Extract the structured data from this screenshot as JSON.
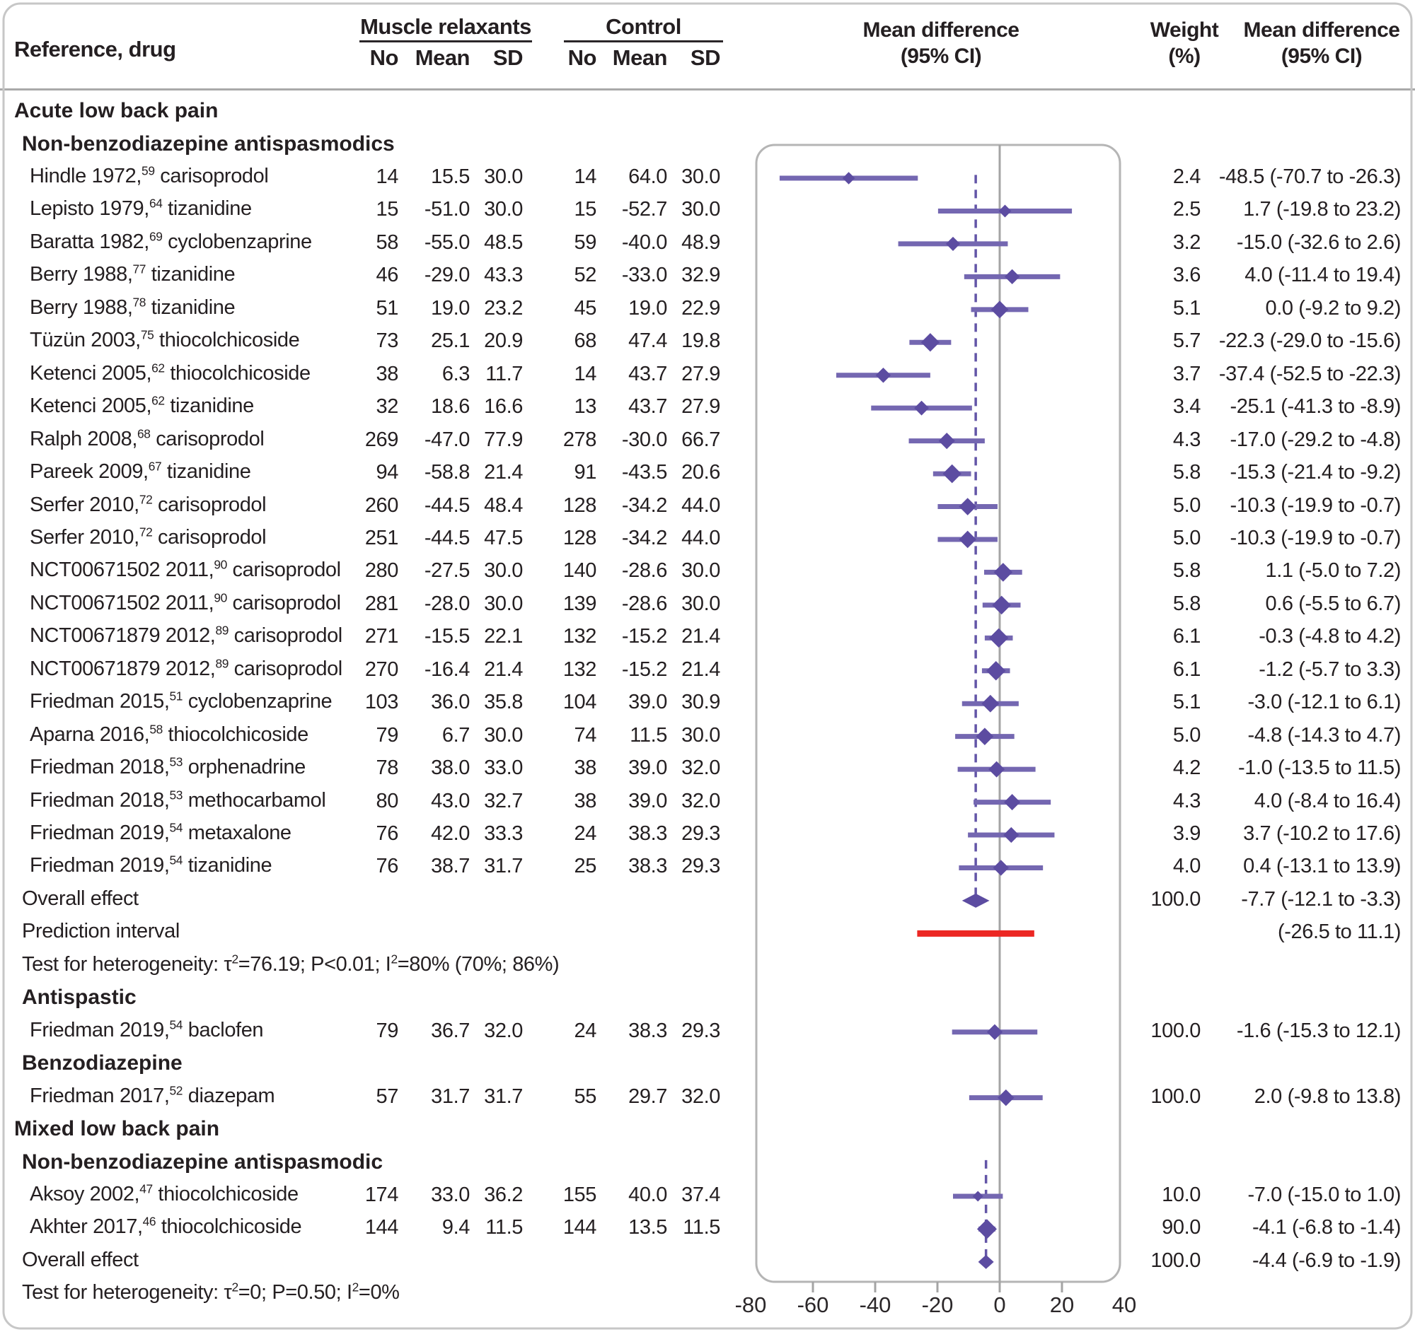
{
  "header": {
    "ref_col": "Reference, drug",
    "group1": "Muscle relaxants",
    "group2": "Control",
    "no": "No",
    "mean": "Mean",
    "sd": "SD",
    "md_line1": "Mean difference",
    "md_line2": "(95% CI)",
    "weight_line1": "Weight",
    "weight_line2": "(%)"
  },
  "colors": {
    "diamond": "#5c4ca1",
    "ci_line": "#7467b1",
    "dashed_line": "#6355a7",
    "prediction_red": "#ec2723",
    "zero_line": "#a4a4a4",
    "frame": "#b5b5b5",
    "outer_border": "#c7c7c7",
    "text": "#241f21"
  },
  "chart_data": {
    "type": "scatter",
    "variant": "forest-plot",
    "xlabel": "Mean difference (95% CI)",
    "x_axis": {
      "tick_labels": [
        "-80",
        "-60",
        "-40",
        "-20",
        "0",
        "20",
        "40"
      ],
      "tick_values": [
        -80,
        -60,
        -40,
        -20,
        0,
        20,
        40
      ],
      "minor_tick_values": [
        -60,
        -40,
        -20,
        20
      ],
      "zero_value": 0,
      "range": [
        -80,
        40
      ]
    },
    "dashed_pooled_lines": [
      {
        "x": -7.7,
        "from_row": 1.9,
        "to_row": 24
      },
      {
        "x": -4.4,
        "from_row": 31.9,
        "to_row": 35
      }
    ],
    "rows": [
      {
        "type": "section",
        "parts": [
          {
            "t": "Acute low back pain"
          }
        ]
      },
      {
        "type": "subsection",
        "parts": [
          {
            "t": "Non-benzodiazepine antispasmodics"
          }
        ]
      },
      {
        "type": "study",
        "parts": [
          {
            "t": "Hindle 1972,"
          },
          {
            "s": "59"
          },
          {
            "t": " carisoprodol"
          }
        ],
        "no1": "14",
        "mean1": "15.5",
        "sd1": "30.0",
        "no2": "14",
        "mean2": "64.0",
        "sd2": "30.0",
        "weight": "2.4",
        "md": "-48.5 (-70.7 to -26.3)",
        "est": -48.5,
        "lo": -70.7,
        "hi": -26.3
      },
      {
        "type": "study",
        "parts": [
          {
            "t": "Lepisto 1979,"
          },
          {
            "s": "64"
          },
          {
            "t": " tizanidine"
          }
        ],
        "no1": "15",
        "mean1": "-51.0",
        "sd1": "30.0",
        "no2": "15",
        "mean2": "-52.7",
        "sd2": "30.0",
        "weight": "2.5",
        "md": "1.7 (-19.8 to 23.2)",
        "est": 1.7,
        "lo": -19.8,
        "hi": 23.2
      },
      {
        "type": "study",
        "parts": [
          {
            "t": "Baratta 1982,"
          },
          {
            "s": "69"
          },
          {
            "t": " cyclobenzaprine"
          }
        ],
        "no1": "58",
        "mean1": "-55.0",
        "sd1": "48.5",
        "no2": "59",
        "mean2": "-40.0",
        "sd2": "48.9",
        "weight": "3.2",
        "md": "-15.0 (-32.6 to 2.6)",
        "est": -15.0,
        "lo": -32.6,
        "hi": 2.6
      },
      {
        "type": "study",
        "parts": [
          {
            "t": "Berry 1988,"
          },
          {
            "s": "77"
          },
          {
            "t": " tizanidine"
          }
        ],
        "no1": "46",
        "mean1": "-29.0",
        "sd1": "43.3",
        "no2": "52",
        "mean2": "-33.0",
        "sd2": "32.9",
        "weight": "3.6",
        "md": "4.0 (-11.4 to 19.4)",
        "est": 4.0,
        "lo": -11.4,
        "hi": 19.4
      },
      {
        "type": "study",
        "parts": [
          {
            "t": "Berry 1988,"
          },
          {
            "s": "78"
          },
          {
            "t": " tizanidine"
          }
        ],
        "no1": "51",
        "mean1": "19.0",
        "sd1": "23.2",
        "no2": "45",
        "mean2": "19.0",
        "sd2": "22.9",
        "weight": "5.1",
        "md": "0.0 (-9.2 to 9.2)",
        "est": 0.0,
        "lo": -9.2,
        "hi": 9.2
      },
      {
        "type": "study",
        "parts": [
          {
            "t": "Tüzün 2003,"
          },
          {
            "s": "75"
          },
          {
            "t": " thiocolchicoside"
          }
        ],
        "no1": "73",
        "mean1": "25.1",
        "sd1": "20.9",
        "no2": "68",
        "mean2": "47.4",
        "sd2": "19.8",
        "weight": "5.7",
        "md": "-22.3 (-29.0 to -15.6)",
        "est": -22.3,
        "lo": -29.0,
        "hi": -15.6
      },
      {
        "type": "study",
        "parts": [
          {
            "t": "Ketenci 2005,"
          },
          {
            "s": "62"
          },
          {
            "t": " thiocolchicoside"
          }
        ],
        "no1": "38",
        "mean1": "6.3",
        "sd1": "11.7",
        "no2": "14",
        "mean2": "43.7",
        "sd2": "27.9",
        "weight": "3.7",
        "md": "-37.4 (-52.5 to -22.3)",
        "est": -37.4,
        "lo": -52.5,
        "hi": -22.3
      },
      {
        "type": "study",
        "parts": [
          {
            "t": "Ketenci 2005,"
          },
          {
            "s": "62"
          },
          {
            "t": " tizanidine"
          }
        ],
        "no1": "32",
        "mean1": "18.6",
        "sd1": "16.6",
        "no2": "13",
        "mean2": "43.7",
        "sd2": "27.9",
        "weight": "3.4",
        "md": "-25.1 (-41.3 to -8.9)",
        "est": -25.1,
        "lo": -41.3,
        "hi": -8.9
      },
      {
        "type": "study",
        "parts": [
          {
            "t": "Ralph 2008,"
          },
          {
            "s": "68"
          },
          {
            "t": " carisoprodol"
          }
        ],
        "no1": "269",
        "mean1": "-47.0",
        "sd1": "77.9",
        "no2": "278",
        "mean2": "-30.0",
        "sd2": "66.7",
        "weight": "4.3",
        "md": "-17.0 (-29.2 to -4.8)",
        "est": -17.0,
        "lo": -29.2,
        "hi": -4.8
      },
      {
        "type": "study",
        "parts": [
          {
            "t": "Pareek 2009,"
          },
          {
            "s": "67"
          },
          {
            "t": " tizanidine"
          }
        ],
        "no1": "94",
        "mean1": "-58.8",
        "sd1": "21.4",
        "no2": "91",
        "mean2": "-43.5",
        "sd2": "20.6",
        "weight": "5.8",
        "md": "-15.3 (-21.4 to -9.2)",
        "est": -15.3,
        "lo": -21.4,
        "hi": -9.2
      },
      {
        "type": "study",
        "parts": [
          {
            "t": "Serfer 2010,"
          },
          {
            "s": "72"
          },
          {
            "t": " carisoprodol"
          }
        ],
        "no1": "260",
        "mean1": "-44.5",
        "sd1": "48.4",
        "no2": "128",
        "mean2": "-34.2",
        "sd2": "44.0",
        "weight": "5.0",
        "md": "-10.3 (-19.9 to -0.7)",
        "est": -10.3,
        "lo": -19.9,
        "hi": -0.7
      },
      {
        "type": "study",
        "parts": [
          {
            "t": "Serfer 2010,"
          },
          {
            "s": "72"
          },
          {
            "t": " carisoprodol"
          }
        ],
        "no1": "251",
        "mean1": "-44.5",
        "sd1": "47.5",
        "no2": "128",
        "mean2": "-34.2",
        "sd2": "44.0",
        "weight": "5.0",
        "md": "-10.3 (-19.9 to -0.7)",
        "est": -10.3,
        "lo": -19.9,
        "hi": -0.7
      },
      {
        "type": "study",
        "parts": [
          {
            "t": "NCT00671502 2011,"
          },
          {
            "s": "90"
          },
          {
            "t": " carisoprodol"
          }
        ],
        "no1": "280",
        "mean1": "-27.5",
        "sd1": "30.0",
        "no2": "140",
        "mean2": "-28.6",
        "sd2": "30.0",
        "weight": "5.8",
        "md": "1.1 (-5.0 to 7.2)",
        "est": 1.1,
        "lo": -5.0,
        "hi": 7.2
      },
      {
        "type": "study",
        "parts": [
          {
            "t": "NCT00671502 2011,"
          },
          {
            "s": "90"
          },
          {
            "t": " carisoprodol"
          }
        ],
        "no1": "281",
        "mean1": "-28.0",
        "sd1": "30.0",
        "no2": "139",
        "mean2": "-28.6",
        "sd2": "30.0",
        "weight": "5.8",
        "md": "0.6 (-5.5 to 6.7)",
        "est": 0.6,
        "lo": -5.5,
        "hi": 6.7
      },
      {
        "type": "study",
        "parts": [
          {
            "t": "NCT00671879 2012,"
          },
          {
            "s": "89"
          },
          {
            "t": " carisoprodol"
          }
        ],
        "no1": "271",
        "mean1": "-15.5",
        "sd1": "22.1",
        "no2": "132",
        "mean2": "-15.2",
        "sd2": "21.4",
        "weight": "6.1",
        "md": "-0.3 (-4.8 to 4.2)",
        "est": -0.3,
        "lo": -4.8,
        "hi": 4.2
      },
      {
        "type": "study",
        "parts": [
          {
            "t": "NCT00671879 2012,"
          },
          {
            "s": "89"
          },
          {
            "t": " carisoprodol"
          }
        ],
        "no1": "270",
        "mean1": "-16.4",
        "sd1": "21.4",
        "no2": "132",
        "mean2": "-15.2",
        "sd2": "21.4",
        "weight": "6.1",
        "md": "-1.2 (-5.7 to 3.3)",
        "est": -1.2,
        "lo": -5.7,
        "hi": 3.3
      },
      {
        "type": "study",
        "parts": [
          {
            "t": "Friedman 2015,"
          },
          {
            "s": "51"
          },
          {
            "t": " cyclobenzaprine"
          }
        ],
        "no1": "103",
        "mean1": "36.0",
        "sd1": "35.8",
        "no2": "104",
        "mean2": "39.0",
        "sd2": "30.9",
        "weight": "5.1",
        "md": "-3.0 (-12.1 to 6.1)",
        "est": -3.0,
        "lo": -12.1,
        "hi": 6.1
      },
      {
        "type": "study",
        "parts": [
          {
            "t": "Aparna 2016,"
          },
          {
            "s": "58"
          },
          {
            "t": " thiocolchicoside"
          }
        ],
        "no1": "79",
        "mean1": "6.7",
        "sd1": "30.0",
        "no2": "74",
        "mean2": "11.5",
        "sd2": "30.0",
        "weight": "5.0",
        "md": "-4.8 (-14.3 to 4.7)",
        "est": -4.8,
        "lo": -14.3,
        "hi": 4.7
      },
      {
        "type": "study",
        "parts": [
          {
            "t": "Friedman 2018,"
          },
          {
            "s": "53"
          },
          {
            "t": " orphenadrine"
          }
        ],
        "no1": "78",
        "mean1": "38.0",
        "sd1": "33.0",
        "no2": "38",
        "mean2": "39.0",
        "sd2": "32.0",
        "weight": "4.2",
        "md": "-1.0 (-13.5 to 11.5)",
        "est": -1.0,
        "lo": -13.5,
        "hi": 11.5
      },
      {
        "type": "study",
        "parts": [
          {
            "t": "Friedman 2018,"
          },
          {
            "s": "53"
          },
          {
            "t": " methocarbamol"
          }
        ],
        "no1": "80",
        "mean1": "43.0",
        "sd1": "32.7",
        "no2": "38",
        "mean2": "39.0",
        "sd2": "32.0",
        "weight": "4.3",
        "md": "4.0 (-8.4 to 16.4)",
        "est": 4.0,
        "lo": -8.4,
        "hi": 16.4
      },
      {
        "type": "study",
        "parts": [
          {
            "t": "Friedman 2019,"
          },
          {
            "s": "54"
          },
          {
            "t": " metaxalone"
          }
        ],
        "no1": "76",
        "mean1": "42.0",
        "sd1": "33.3",
        "no2": "24",
        "mean2": "38.3",
        "sd2": "29.3",
        "weight": "3.9",
        "md": "3.7 (-10.2 to 17.6)",
        "est": 3.7,
        "lo": -10.2,
        "hi": 17.6
      },
      {
        "type": "study",
        "parts": [
          {
            "t": "Friedman 2019,"
          },
          {
            "s": "54"
          },
          {
            "t": " tizanidine"
          }
        ],
        "no1": "76",
        "mean1": "38.7",
        "sd1": "31.7",
        "no2": "25",
        "mean2": "38.3",
        "sd2": "29.3",
        "weight": "4.0",
        "md": "0.4 (-13.1 to 13.9)",
        "est": 0.4,
        "lo": -13.1,
        "hi": 13.9
      },
      {
        "type": "overall",
        "parts": [
          {
            "t": "Overall effect"
          }
        ],
        "weight": "100.0",
        "md": "-7.7 (-12.1 to -3.3)",
        "est": -7.7,
        "lo": -12.1,
        "hi": -3.3
      },
      {
        "type": "prediction",
        "parts": [
          {
            "t": "Prediction interval"
          }
        ],
        "md": "(-26.5 to 11.1)",
        "lo": -26.5,
        "hi": 11.1
      },
      {
        "type": "note",
        "parts": [
          {
            "t": "Test for heterogeneity: τ"
          },
          {
            "s": "2"
          },
          {
            "t": "=76.19; P<0.01; I"
          },
          {
            "s": "2"
          },
          {
            "t": "=80% (70%; 86%)"
          }
        ]
      },
      {
        "type": "subsection",
        "parts": [
          {
            "t": "Antispastic"
          }
        ]
      },
      {
        "type": "study",
        "parts": [
          {
            "t": "Friedman 2019,"
          },
          {
            "s": "54"
          },
          {
            "t": " baclofen"
          }
        ],
        "no1": "79",
        "mean1": "36.7",
        "sd1": "32.0",
        "no2": "24",
        "mean2": "38.3",
        "sd2": "29.3",
        "weight": "100.0",
        "md": "-1.6 (-15.3 to 12.1)",
        "est": -1.6,
        "lo": -15.3,
        "hi": 12.1
      },
      {
        "type": "subsection",
        "parts": [
          {
            "t": "Benzodiazepine"
          }
        ]
      },
      {
        "type": "study",
        "parts": [
          {
            "t": "Friedman 2017,"
          },
          {
            "s": "52"
          },
          {
            "t": " diazepam"
          }
        ],
        "no1": "57",
        "mean1": "31.7",
        "sd1": "31.7",
        "no2": "55",
        "mean2": "29.7",
        "sd2": "32.0",
        "weight": "100.0",
        "md": "2.0 (-9.8 to 13.8)",
        "est": 2.0,
        "lo": -9.8,
        "hi": 13.8
      },
      {
        "type": "section",
        "parts": [
          {
            "t": "Mixed low back pain"
          }
        ]
      },
      {
        "type": "subsection",
        "parts": [
          {
            "t": "Non-benzodiazepine antispasmodic"
          }
        ]
      },
      {
        "type": "study",
        "parts": [
          {
            "t": "Aksoy 2002,"
          },
          {
            "s": "47"
          },
          {
            "t": " thiocolchicoside"
          }
        ],
        "no1": "174",
        "mean1": "33.0",
        "sd1": "36.2",
        "no2": "155",
        "mean2": "40.0",
        "sd2": "37.4",
        "weight": "10.0",
        "md": "-7.0 (-15.0 to 1.0)",
        "est": -7.0,
        "lo": -15.0,
        "hi": 1.0,
        "small": true
      },
      {
        "type": "study",
        "parts": [
          {
            "t": "Akhter 2017,"
          },
          {
            "s": "46"
          },
          {
            "t": " thiocolchicoside"
          }
        ],
        "no1": "144",
        "mean1": "9.4",
        "sd1": "11.5",
        "no2": "144",
        "mean2": "13.5",
        "sd2": "11.5",
        "weight": "90.0",
        "md": "-4.1 (-6.8 to -1.4)",
        "est": -4.1,
        "lo": -6.8,
        "hi": -1.4
      },
      {
        "type": "overall",
        "parts": [
          {
            "t": "Overall effect"
          }
        ],
        "weight": "100.0",
        "md": "-4.4 (-6.9 to -1.9)",
        "est": -4.4,
        "lo": -6.9,
        "hi": -1.9
      },
      {
        "type": "note",
        "parts": [
          {
            "t": "Test for heterogeneity: τ"
          },
          {
            "s": "2"
          },
          {
            "t": "=0; P=0.50; I"
          },
          {
            "s": "2"
          },
          {
            "t": "=0%"
          }
        ]
      }
    ]
  }
}
